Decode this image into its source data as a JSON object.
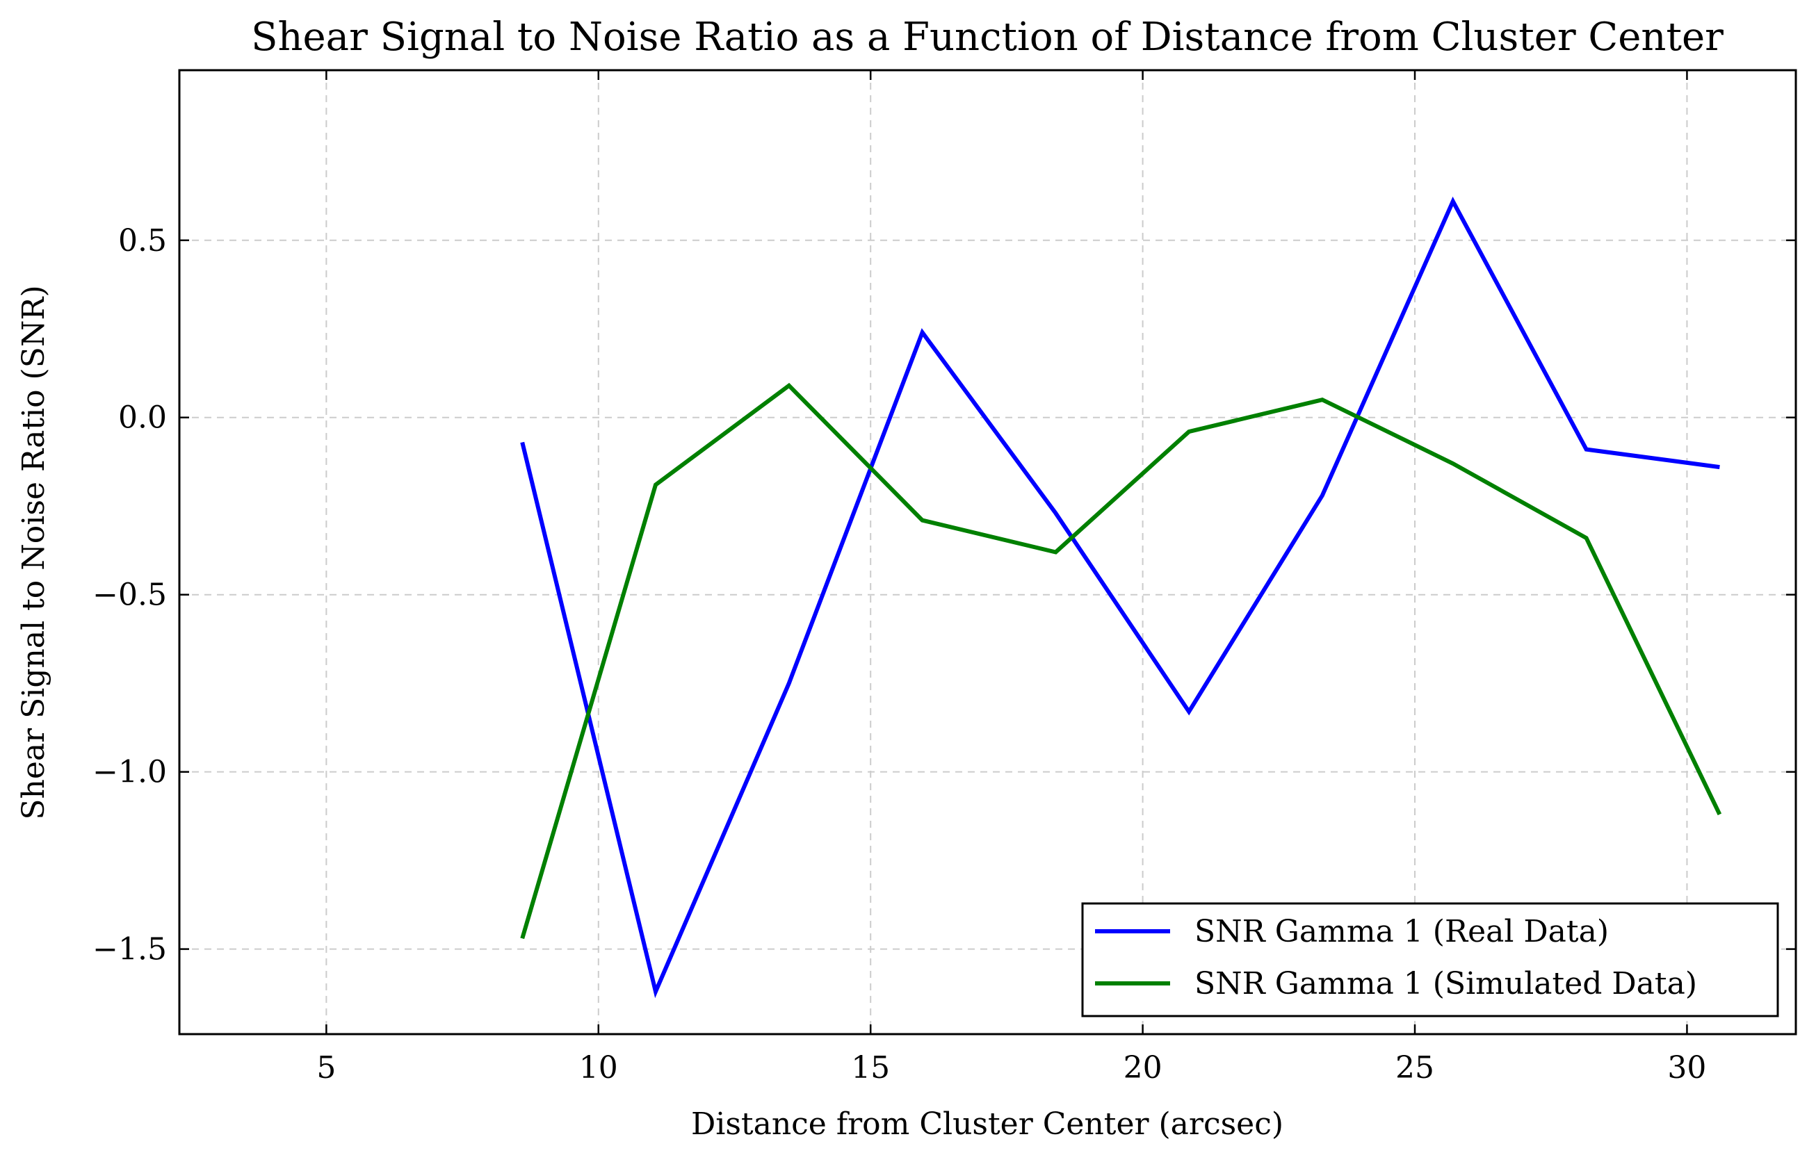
{
  "chart_data": {
    "type": "line",
    "title": "Shear Signal to Noise Ratio as a Function of Distance from Cluster Center",
    "xlabel": "Distance from Cluster Center (arcsec)",
    "ylabel": "Shear Signal to Noise Ratio (SNR)",
    "xlim": [
      2.3,
      32.0
    ],
    "ylim": [
      -1.74,
      0.98
    ],
    "xticks": [
      5,
      10,
      15,
      20,
      25,
      30
    ],
    "xtick_labels": [
      "5",
      "10",
      "15",
      "20",
      "25",
      "30"
    ],
    "yticks": [
      -1.5,
      -1.0,
      -0.5,
      0.0,
      0.5
    ],
    "ytick_labels": [
      "−1.5",
      "−1.0",
      "−0.5",
      "0.0",
      "0.5"
    ],
    "grid": true,
    "legend_position": "bottom-right",
    "x": [
      8.6,
      11.05,
      13.5,
      15.95,
      18.4,
      20.85,
      23.3,
      25.7,
      28.15,
      30.6
    ],
    "series": [
      {
        "name": "SNR Gamma 1 (Real Data)",
        "color": "#0000ff",
        "values": [
          -0.07,
          -1.62,
          -0.75,
          0.24,
          -0.27,
          -0.83,
          -0.22,
          0.61,
          -0.09,
          -0.14
        ]
      },
      {
        "name": "SNR Gamma 1 (Simulated Data)",
        "color": "#008000",
        "values": [
          -1.47,
          -0.19,
          0.09,
          -0.29,
          -0.38,
          -0.04,
          0.05,
          -0.13,
          -0.34,
          -1.12
        ]
      }
    ]
  }
}
